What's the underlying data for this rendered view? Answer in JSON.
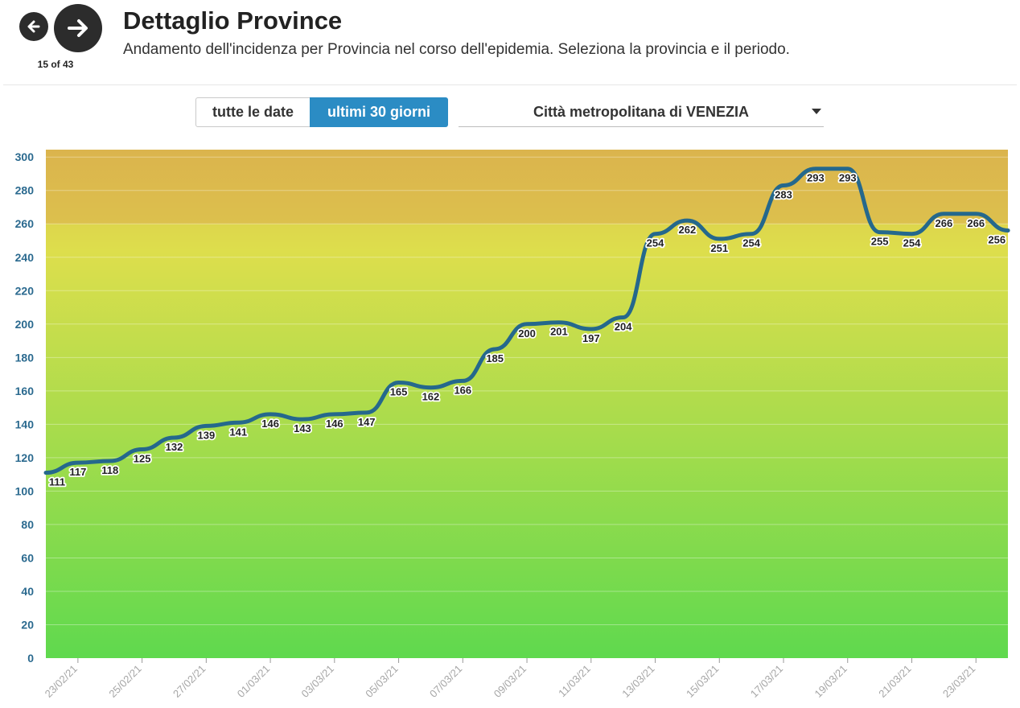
{
  "nav": {
    "counter": "15 of 43"
  },
  "header": {
    "title": "Dettaglio Province",
    "subtitle": "Andamento dell'incidenza per Provincia nel corso dell'epidemia. Seleziona la provincia e il periodo."
  },
  "controls": {
    "all_dates": "tutte le date",
    "last_30": "ultimi 30 giorni",
    "province": "Città metropolitana di VENEZIA"
  },
  "colors": {
    "line": "#25688c",
    "active": "#2b8cc4",
    "axis_text": "#2b6a8f"
  },
  "chart_data": {
    "type": "line",
    "title": "",
    "xlabel": "",
    "ylabel": "",
    "ylim": [
      0,
      300
    ],
    "yticks": [
      "0",
      "20",
      "40",
      "60",
      "80",
      "100",
      "120",
      "140",
      "160",
      "180",
      "200",
      "220",
      "240",
      "260",
      "280",
      "300"
    ],
    "xtick_labels": [
      "23/02/21",
      "25/02/21",
      "27/02/21",
      "01/03/21",
      "03/03/21",
      "05/03/21",
      "07/03/21",
      "09/03/21",
      "11/03/21",
      "13/03/21",
      "15/03/21",
      "17/03/21",
      "19/03/21",
      "21/03/21",
      "23/03/21"
    ],
    "x": [
      "22/02/21",
      "23/02/21",
      "24/02/21",
      "25/02/21",
      "26/02/21",
      "27/02/21",
      "28/02/21",
      "01/03/21",
      "02/03/21",
      "03/03/21",
      "04/03/21",
      "05/03/21",
      "06/03/21",
      "07/03/21",
      "08/03/21",
      "09/03/21",
      "10/03/21",
      "11/03/21",
      "12/03/21",
      "13/03/21",
      "14/03/21",
      "15/03/21",
      "16/03/21",
      "17/03/21",
      "18/03/21",
      "19/03/21",
      "20/03/21",
      "21/03/21",
      "22/03/21",
      "23/03/21",
      "24/03/21"
    ],
    "series": [
      {
        "values": [
          111,
          117,
          118,
          125,
          132,
          139,
          141,
          146,
          143,
          146,
          147,
          165,
          162,
          166,
          185,
          200,
          201,
          197,
          204,
          254,
          262,
          251,
          254,
          283,
          293,
          293,
          255,
          254,
          266,
          266,
          256
        ]
      }
    ],
    "background": "gradient green (low) to yellow to orange (high)",
    "grid": true
  }
}
